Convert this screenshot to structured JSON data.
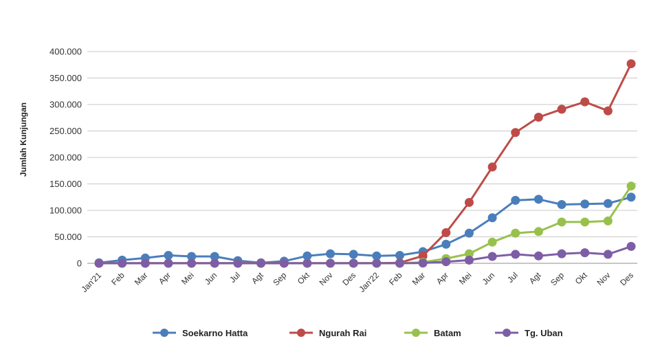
{
  "chart_data": {
    "type": "line",
    "title": "",
    "xlabel": "",
    "ylabel": "Jumlah Kunjungan",
    "ylim": [
      0,
      400000
    ],
    "y_ticks": [
      "0",
      "50.000",
      "100.000",
      "150.000",
      "200.000",
      "250.000",
      "300.000",
      "350.000",
      "400.000"
    ],
    "grid": "horizontal",
    "legend_position": "bottom",
    "categories": [
      "Jan'21",
      "Feb",
      "Mar",
      "Apr",
      "Mei",
      "Jun",
      "Jul",
      "Agt",
      "Sep",
      "Okt",
      "Nov",
      "Des",
      "Jan'22",
      "Feb",
      "Mar",
      "Apr",
      "Mei",
      "Jun",
      "Jul",
      "Agt",
      "Sep",
      "Okt",
      "Nov",
      "Des"
    ],
    "series": [
      {
        "name": "Soekarno Hatta",
        "color": "#4A7EBB",
        "values": [
          1000,
          6000,
          10000,
          15000,
          13000,
          13000,
          5000,
          1000,
          4000,
          14000,
          18000,
          17000,
          14000,
          15000,
          22000,
          36000,
          57000,
          86000,
          119000,
          121000,
          111000,
          112000,
          113000,
          125000
        ]
      },
      {
        "name": "Ngurah Rai",
        "color": "#BE4B48",
        "values": [
          200,
          200,
          200,
          200,
          200,
          200,
          200,
          200,
          200,
          200,
          200,
          200,
          200,
          1000,
          14000,
          58000,
          115000,
          182000,
          247000,
          276000,
          291000,
          305000,
          288000,
          377000
        ]
      },
      {
        "name": "Batam",
        "color": "#98C14C",
        "values": [
          100,
          100,
          100,
          100,
          100,
          100,
          100,
          100,
          100,
          100,
          100,
          100,
          100,
          200,
          2000,
          9000,
          18000,
          40000,
          57000,
          60000,
          78000,
          78000,
          80000,
          146000
        ]
      },
      {
        "name": "Tg. Uban",
        "color": "#7D5EA6",
        "values": [
          100,
          100,
          100,
          100,
          100,
          100,
          100,
          100,
          100,
          100,
          100,
          100,
          100,
          100,
          500,
          3000,
          6000,
          13000,
          17000,
          14000,
          18000,
          20000,
          17000,
          32000
        ]
      }
    ]
  }
}
